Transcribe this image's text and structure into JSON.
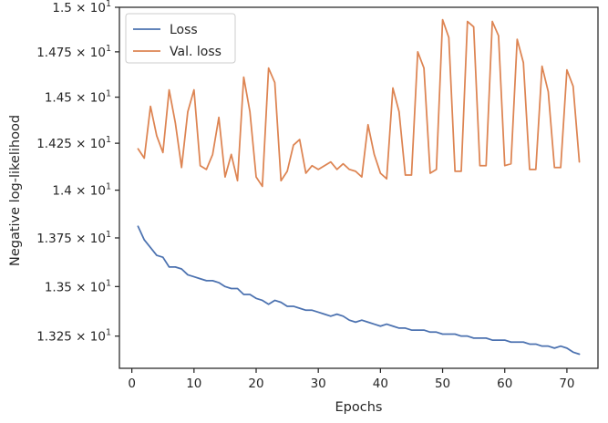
{
  "chart_data": {
    "type": "line",
    "xlabel": "Epochs",
    "ylabel": "Negative log-likelihood",
    "xlim": [
      -2,
      75
    ],
    "ylim": [
      13.09,
      15.0
    ],
    "x_ticks": [
      0,
      10,
      20,
      30,
      40,
      50,
      60,
      70
    ],
    "y_ticks": [
      {
        "value": 13.25,
        "mantissa": "1.325",
        "exponent": "1"
      },
      {
        "value": 13.5,
        "mantissa": "1.35",
        "exponent": "1"
      },
      {
        "value": 13.75,
        "mantissa": "1.375",
        "exponent": "1"
      },
      {
        "value": 14.0,
        "mantissa": "1.4",
        "exponent": "1"
      },
      {
        "value": 14.25,
        "mantissa": "1.425",
        "exponent": "1"
      },
      {
        "value": 14.5,
        "mantissa": "1.45",
        "exponent": "1"
      },
      {
        "value": 14.75,
        "mantissa": "1.475",
        "exponent": "1"
      },
      {
        "value": 15.0,
        "mantissa": "1.5",
        "exponent": "1"
      }
    ],
    "y_scale": "log",
    "grid": false,
    "legend": "top-left",
    "x": [
      1,
      2,
      3,
      4,
      5,
      6,
      7,
      8,
      9,
      10,
      11,
      12,
      13,
      14,
      15,
      16,
      17,
      18,
      19,
      20,
      21,
      22,
      23,
      24,
      25,
      26,
      27,
      28,
      29,
      30,
      31,
      32,
      33,
      34,
      35,
      36,
      37,
      38,
      39,
      40,
      41,
      42,
      43,
      44,
      45,
      46,
      47,
      48,
      49,
      50,
      51,
      52,
      53,
      54,
      55,
      56,
      57,
      58,
      59,
      60,
      61,
      62,
      63,
      64,
      65,
      66,
      67,
      68,
      69,
      70,
      71,
      72
    ],
    "series": [
      {
        "name": "Loss",
        "color": "#4c72b0",
        "values": [
          13.81,
          13.74,
          13.7,
          13.66,
          13.65,
          13.6,
          13.6,
          13.59,
          13.56,
          13.55,
          13.54,
          13.53,
          13.53,
          13.52,
          13.5,
          13.49,
          13.49,
          13.46,
          13.46,
          13.44,
          13.43,
          13.41,
          13.43,
          13.42,
          13.4,
          13.4,
          13.39,
          13.38,
          13.38,
          13.37,
          13.36,
          13.35,
          13.36,
          13.35,
          13.33,
          13.32,
          13.33,
          13.32,
          13.31,
          13.3,
          13.31,
          13.3,
          13.29,
          13.29,
          13.28,
          13.28,
          13.28,
          13.27,
          13.27,
          13.26,
          13.26,
          13.26,
          13.25,
          13.25,
          13.24,
          13.24,
          13.24,
          13.23,
          13.23,
          13.23,
          13.22,
          13.22,
          13.22,
          13.21,
          13.21,
          13.2,
          13.2,
          13.19,
          13.2,
          13.19,
          13.17,
          13.16
        ]
      },
      {
        "name": "Val. loss",
        "color": "#dd8452",
        "values": [
          14.22,
          14.17,
          14.45,
          14.29,
          14.2,
          14.54,
          14.36,
          14.12,
          14.42,
          14.54,
          14.13,
          14.11,
          14.19,
          14.39,
          14.07,
          14.19,
          14.05,
          14.61,
          14.42,
          14.07,
          14.02,
          14.66,
          14.58,
          14.05,
          14.1,
          14.24,
          14.27,
          14.09,
          14.13,
          14.11,
          14.13,
          14.15,
          14.11,
          14.14,
          14.11,
          14.1,
          14.07,
          14.35,
          14.19,
          14.09,
          14.06,
          14.55,
          14.42,
          14.08,
          14.08,
          14.75,
          14.66,
          14.09,
          14.11,
          14.93,
          14.83,
          14.1,
          14.1,
          14.92,
          14.89,
          14.13,
          14.13,
          14.92,
          14.84,
          14.13,
          14.14,
          14.82,
          14.69,
          14.11,
          14.11,
          14.67,
          14.53,
          14.12,
          14.12,
          14.65,
          14.56,
          14.15
        ]
      }
    ]
  }
}
